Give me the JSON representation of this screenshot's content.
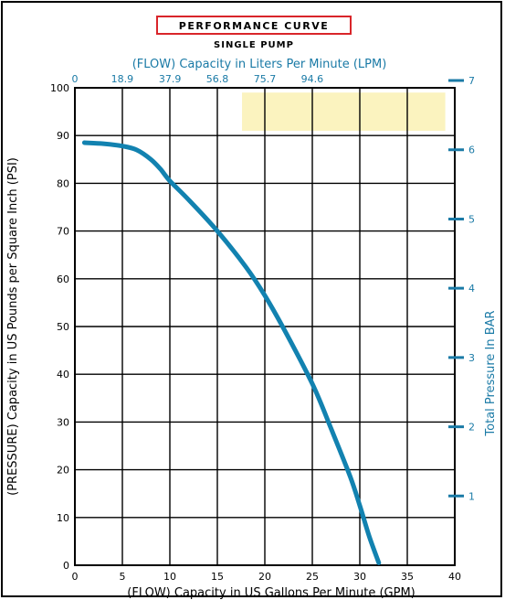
{
  "header": {
    "title": "PERFORMANCE CURVE",
    "subtitle": "SINGLE PUMP",
    "title_border_color": "#d9252a"
  },
  "colors": {
    "curve": "#1282b0",
    "secondary_text": "#1a7aa6",
    "highlight": "#fbf3bf",
    "grid": "#000000"
  },
  "chart_data": {
    "type": "line",
    "title": "PERFORMANCE CURVE",
    "subtitle": "SINGLE PUMP",
    "xlabel": "(FLOW) Capacity in US Gallons Per Minute (GPM)",
    "ylabel": "(PRESSURE) Capacity in US Pounds per Square Inch (PSI)",
    "x2label": "(FLOW) Capacity in Liters Per Minute (LPM)",
    "y2label": "Total Pressure In BAR",
    "xlim": [
      0,
      40
    ],
    "ylim": [
      0,
      100
    ],
    "xticks": [
      "0",
      "5",
      "10",
      "15",
      "20",
      "25",
      "30",
      "35",
      "40"
    ],
    "yticks": [
      "0",
      "10",
      "20",
      "30",
      "40",
      "50",
      "60",
      "70",
      "80",
      "90",
      "100"
    ],
    "x2ticks": [
      "0",
      "18.9",
      "37.9",
      "56.8",
      "75.7",
      "94.6"
    ],
    "y2ticks": [
      "1",
      "2",
      "3",
      "4",
      "5",
      "6",
      "7"
    ],
    "grid": true,
    "series": [
      {
        "x": [
          1,
          3,
          5,
          6.5,
          8,
          9,
          10,
          12,
          15,
          18,
          20,
          22,
          25,
          27,
          29,
          30,
          31,
          32
        ],
        "y": [
          88.5,
          88.3,
          87.8,
          87,
          85,
          83,
          80.5,
          76.5,
          70,
          62.5,
          56.5,
          49.5,
          38,
          28.5,
          18.5,
          12.5,
          6,
          0.5
        ]
      }
    ]
  }
}
